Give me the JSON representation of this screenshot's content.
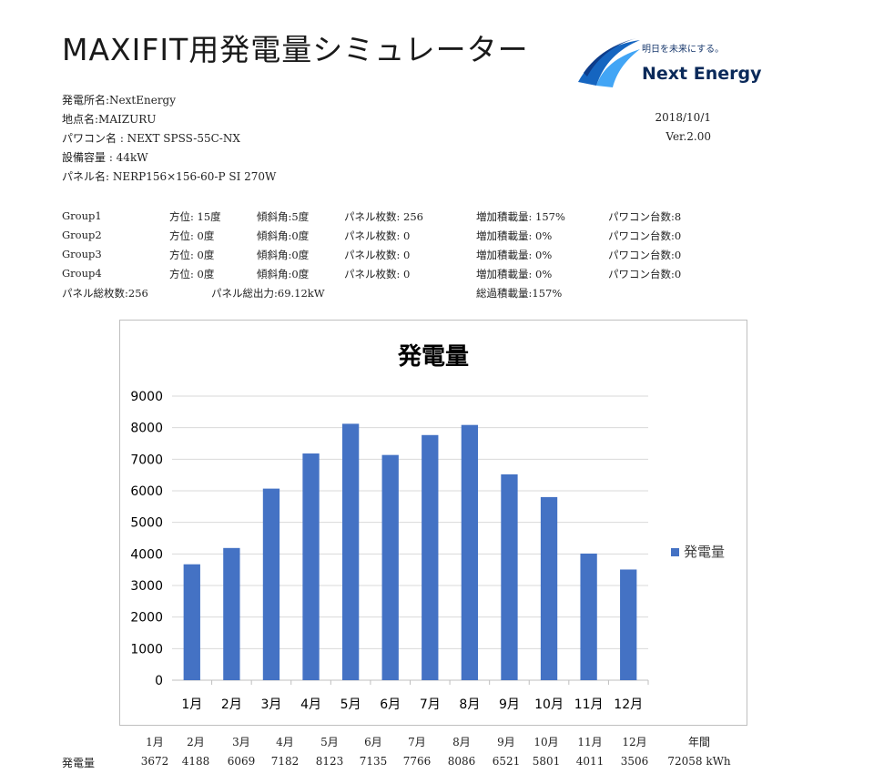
{
  "header": {
    "title": "MAXIFIT用発電量シミュレーター",
    "logo_tagline": "明日を未来にする。",
    "logo_name": "Next Energy"
  },
  "info": {
    "plant_name": "発電所名:NextEnergy",
    "location": "地点名:MAIZURU",
    "pcs": "パワコン名 : NEXT SPSS-55C-NX",
    "capacity": "設備容量 : 44kW",
    "panel": "パネル名: NERP156×156-60-P SI 270W",
    "date": "2018/10/1",
    "version": "Ver.2.00"
  },
  "groups": [
    {
      "name": "Group1",
      "azimuth": "方位: 15度",
      "tilt": "傾斜角:5度",
      "panels": "パネル枚数: 256",
      "overload": "増加積載量: 157%",
      "pcs_count": "パワコン台数:8"
    },
    {
      "name": "Group2",
      "azimuth": "方位: 0度",
      "tilt": "傾斜角:0度",
      "panels": "パネル枚数: 0",
      "overload": "増加積載量: 0%",
      "pcs_count": "パワコン台数:0"
    },
    {
      "name": "Group3",
      "azimuth": "方位: 0度",
      "tilt": "傾斜角:0度",
      "panels": "パネル枚数: 0",
      "overload": "増加積載量: 0%",
      "pcs_count": "パワコン台数:0"
    },
    {
      "name": "Group4",
      "azimuth": "方位: 0度",
      "tilt": "傾斜角:0度",
      "panels": "パネル枚数: 0",
      "overload": "増加積載量: 0%",
      "pcs_count": "パワコン台数:0"
    }
  ],
  "totals": {
    "panel_total": "パネル総枚数:256",
    "output_total": "パネル総出力:69.12kW",
    "overload_total": "総過積載量:157%"
  },
  "chart_data": {
    "type": "bar",
    "title": "発電量",
    "categories": [
      "1月",
      "2月",
      "3月",
      "4月",
      "5月",
      "6月",
      "7月",
      "8月",
      "9月",
      "10月",
      "11月",
      "12月"
    ],
    "series": [
      {
        "name": "発電量",
        "values": [
          3672,
          4188,
          6069,
          7182,
          8123,
          7135,
          7766,
          8086,
          6521,
          5801,
          4011,
          3506
        ],
        "color": "#4472C4"
      }
    ],
    "yticks": [
      "0",
      "1000",
      "2000",
      "3000",
      "4000",
      "5000",
      "6000",
      "7000",
      "8000",
      "9000"
    ],
    "ylim": [
      0,
      9000
    ],
    "grid": true,
    "legend_position": "right"
  },
  "table": {
    "row_label": "発電量",
    "months": [
      "1月",
      "2月",
      "3月",
      "4月",
      "5月",
      "6月",
      "7月",
      "8月",
      "9月",
      "10月",
      "11月",
      "12月"
    ],
    "values": [
      "3672",
      "4188",
      "6069",
      "7182",
      "8123",
      "7135",
      "7766",
      "8086",
      "6521",
      "5801",
      "4011",
      "3506"
    ],
    "annual_label": "年間",
    "annual_value": "72058 kWh"
  }
}
